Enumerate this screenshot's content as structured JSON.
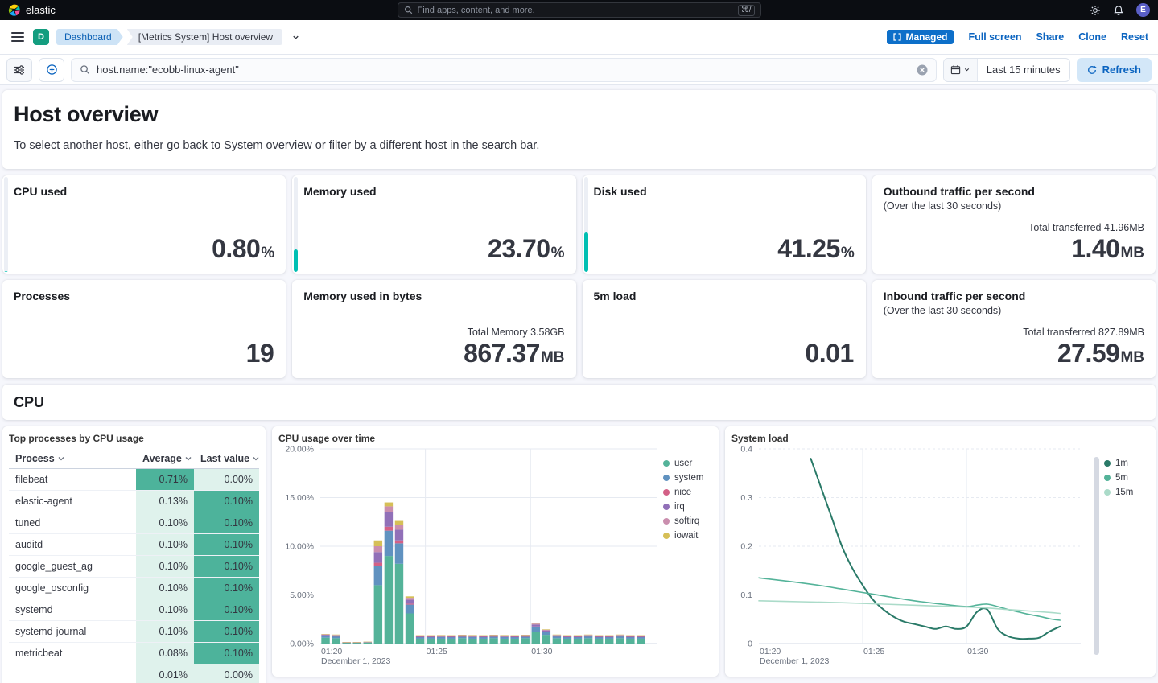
{
  "colors": {
    "accent_blue": "#0b64c0",
    "badge_blue": "#0d6fc9",
    "success_green": "#00bfb3"
  },
  "header": {
    "brand": "elastic",
    "search_placeholder": "Find apps, content, and more.",
    "search_shortcut": "⌘/",
    "avatar_initial": "E"
  },
  "toolbar": {
    "app_badge": "D",
    "breadcrumbs": [
      "Dashboard",
      "[Metrics System] Host overview"
    ],
    "managed_label": "Managed",
    "actions": {
      "full_screen": "Full screen",
      "share": "Share",
      "clone": "Clone",
      "reset": "Reset"
    }
  },
  "querybar": {
    "query": "host.name:\"ecobb-linux-agent\"",
    "time_range": "Last 15 minutes",
    "refresh_label": "Refresh"
  },
  "page": {
    "title": "Host overview",
    "subtitle_pre": "To select another host, either go back to ",
    "subtitle_link": "System overview",
    "subtitle_post": " or filter by a different host in the search bar."
  },
  "metrics": [
    {
      "title": "CPU used",
      "value": "0.80",
      "unit": "%",
      "bar_pct": 0.8,
      "bar_color": "#00bfb3"
    },
    {
      "title": "Memory used",
      "value": "23.70",
      "unit": "%",
      "bar_pct": 23.7,
      "bar_color": "#00bfb3"
    },
    {
      "title": "Disk used",
      "value": "41.25",
      "unit": "%",
      "bar_pct": 41.25,
      "bar_color": "#00bfb3"
    },
    {
      "title": "Outbound traffic per second",
      "subtitle": "(Over the last 30 seconds)",
      "secondary": "Total transferred 41.96MB",
      "value": "1.40",
      "unit": "MB"
    },
    {
      "title": "Processes",
      "value": "19",
      "unit": ""
    },
    {
      "title": "Memory used in bytes",
      "secondary": "Total Memory 3.58GB",
      "value": "867.37",
      "unit": "MB"
    },
    {
      "title": "5m load",
      "value": "0.01",
      "unit": ""
    },
    {
      "title": "Inbound traffic per second",
      "subtitle": "(Over the last 30 seconds)",
      "secondary": "Total transferred 827.89MB",
      "value": "27.59",
      "unit": "MB"
    }
  ],
  "cpu_section": {
    "title": "CPU"
  },
  "process_table": {
    "title": "Top processes by CPU usage",
    "columns": [
      "Process",
      "Average",
      "Last value"
    ],
    "heat_colors": {
      "strong": "#4db39b",
      "light": "#dff2ec"
    },
    "rows": [
      {
        "process": "filebeat",
        "average": "0.71%",
        "average_level": "strong",
        "last": "0.00%",
        "last_level": "light"
      },
      {
        "process": "elastic-agent",
        "average": "0.13%",
        "average_level": "light",
        "last": "0.10%",
        "last_level": "strong"
      },
      {
        "process": "tuned",
        "average": "0.10%",
        "average_level": "light",
        "last": "0.10%",
        "last_level": "strong"
      },
      {
        "process": "auditd",
        "average": "0.10%",
        "average_level": "light",
        "last": "0.10%",
        "last_level": "strong"
      },
      {
        "process": "google_guest_ag",
        "average": "0.10%",
        "average_level": "light",
        "last": "0.10%",
        "last_level": "strong"
      },
      {
        "process": "google_osconfig",
        "average": "0.10%",
        "average_level": "light",
        "last": "0.10%",
        "last_level": "strong"
      },
      {
        "process": "systemd",
        "average": "0.10%",
        "average_level": "light",
        "last": "0.10%",
        "last_level": "strong"
      },
      {
        "process": "systemd-journal",
        "average": "0.10%",
        "average_level": "light",
        "last": "0.10%",
        "last_level": "strong"
      },
      {
        "process": "metricbeat",
        "average": "0.08%",
        "average_level": "light",
        "last": "0.10%",
        "last_level": "strong"
      },
      {
        "process": "",
        "average": "0.01%",
        "average_level": "light",
        "last": "0.00%",
        "last_level": "light"
      }
    ]
  },
  "chart_data": [
    {
      "id": "cpu_usage_over_time",
      "type": "bar",
      "stacked": true,
      "title": "CPU usage over time",
      "xlabel": "",
      "ylabel": "",
      "legend_position": "right",
      "y_max": 20,
      "y_ticks": [
        {
          "value": 0,
          "label": "0.00%"
        },
        {
          "value": 5,
          "label": "5.00%"
        },
        {
          "value": 10,
          "label": "10.00%"
        },
        {
          "value": 15,
          "label": "15.00%"
        },
        {
          "value": 20,
          "label": "20.00%"
        }
      ],
      "x_domain_minutes": [
        0,
        16
      ],
      "x_bucket_start": 0.25,
      "x_bucket_step": 0.5,
      "x_ticks": [
        {
          "offset": 0,
          "label": "01:20",
          "sublabel": "December 1, 2023"
        },
        {
          "offset": 5,
          "label": "01:25"
        },
        {
          "offset": 10,
          "label": "01:30"
        }
      ],
      "series": [
        {
          "name": "user",
          "color": "#54b399",
          "values": [
            0.6,
            0.55,
            0.08,
            0.08,
            0.1,
            6,
            9,
            8.2,
            3.1,
            0.5,
            0.5,
            0.5,
            0.5,
            0.55,
            0.5,
            0.5,
            0.55,
            0.5,
            0.5,
            0.55,
            1.2,
            0.9,
            0.55,
            0.5,
            0.5,
            0.55,
            0.5,
            0.5,
            0.55,
            0.5,
            0.5
          ]
        },
        {
          "name": "system",
          "color": "#6092c0",
          "values": [
            0.2,
            0.2,
            0.03,
            0.03,
            0.05,
            2,
            2.6,
            2.1,
            0.9,
            0.18,
            0.18,
            0.2,
            0.18,
            0.18,
            0.2,
            0.18,
            0.18,
            0.2,
            0.18,
            0.18,
            0.5,
            0.3,
            0.2,
            0.18,
            0.18,
            0.2,
            0.18,
            0.18,
            0.2,
            0.18,
            0.18
          ]
        },
        {
          "name": "nice",
          "color": "#d36086",
          "values": [
            0.02,
            0.02,
            0.01,
            0.01,
            0.01,
            0.3,
            0.4,
            0.3,
            0.1,
            0.02,
            0.02,
            0.02,
            0.02,
            0.02,
            0.02,
            0.02,
            0.02,
            0.02,
            0.02,
            0.02,
            0.05,
            0.03,
            0.02,
            0.02,
            0.02,
            0.02,
            0.02,
            0.02,
            0.02,
            0.02,
            0.02
          ]
        },
        {
          "name": "irq",
          "color": "#9170b8",
          "values": [
            0.08,
            0.08,
            0.01,
            0.01,
            0.01,
            1.1,
            1.5,
            1.1,
            0.4,
            0.08,
            0.08,
            0.08,
            0.08,
            0.08,
            0.08,
            0.08,
            0.08,
            0.08,
            0.08,
            0.08,
            0.2,
            0.12,
            0.08,
            0.08,
            0.08,
            0.08,
            0.08,
            0.08,
            0.08,
            0.08,
            0.08
          ]
        },
        {
          "name": "softirq",
          "color": "#ca8eae",
          "values": [
            0.05,
            0.05,
            0.01,
            0.01,
            0.01,
            0.6,
            0.6,
            0.5,
            0.2,
            0.05,
            0.05,
            0.05,
            0.05,
            0.05,
            0.05,
            0.05,
            0.05,
            0.05,
            0.05,
            0.05,
            0.1,
            0.07,
            0.05,
            0.05,
            0.05,
            0.05,
            0.05,
            0.05,
            0.05,
            0.05,
            0.05
          ]
        },
        {
          "name": "iowait",
          "color": "#d6bf57",
          "values": [
            0.03,
            0.03,
            0.01,
            0.01,
            0.01,
            0.6,
            0.4,
            0.4,
            0.15,
            0.03,
            0.03,
            0.03,
            0.03,
            0.03,
            0.03,
            0.03,
            0.03,
            0.03,
            0.03,
            0.03,
            0.1,
            0.05,
            0.03,
            0.03,
            0.03,
            0.03,
            0.03,
            0.03,
            0.03,
            0.03,
            0.03
          ]
        }
      ]
    },
    {
      "id": "system_load",
      "type": "line",
      "title": "System load",
      "xlabel": "",
      "ylabel": "",
      "legend_position": "right",
      "y_max": 0.4,
      "y_ticks": [
        {
          "value": 0,
          "label": "0"
        },
        {
          "value": 0.1,
          "label": "0.1"
        },
        {
          "value": 0.2,
          "label": "0.2"
        },
        {
          "value": 0.3,
          "label": "0.3"
        },
        {
          "value": 0.4,
          "label": "0.4"
        }
      ],
      "x_domain_minutes": [
        0,
        15.5
      ],
      "x_ticks": [
        {
          "offset": 0,
          "label": "01:20",
          "sublabel": "December 1, 2023"
        },
        {
          "offset": 5,
          "label": "01:25"
        },
        {
          "offset": 10,
          "label": "01:30"
        }
      ],
      "series": [
        {
          "name": "1m",
          "color": "#2a7a68",
          "points": [
            [
              2.5,
              0.38
            ],
            [
              3,
              0.32
            ],
            [
              3.5,
              0.26
            ],
            [
              4,
              0.2
            ],
            [
              4.5,
              0.155
            ],
            [
              5,
              0.12
            ],
            [
              5.5,
              0.09
            ],
            [
              6,
              0.07
            ],
            [
              6.5,
              0.055
            ],
            [
              7,
              0.045
            ],
            [
              7.5,
              0.04
            ],
            [
              8,
              0.035
            ],
            [
              8.5,
              0.03
            ],
            [
              9,
              0.035
            ],
            [
              9.5,
              0.03
            ],
            [
              10,
              0.035
            ],
            [
              10.5,
              0.065
            ],
            [
              11,
              0.07
            ],
            [
              11.5,
              0.03
            ],
            [
              12,
              0.015
            ],
            [
              12.5,
              0.01
            ],
            [
              13,
              0.01
            ],
            [
              13.5,
              0.012
            ],
            [
              14,
              0.025
            ],
            [
              14.5,
              0.035
            ]
          ]
        },
        {
          "name": "5m",
          "color": "#54b399",
          "points": [
            [
              0,
              0.135
            ],
            [
              1,
              0.13
            ],
            [
              2,
              0.125
            ],
            [
              3,
              0.119
            ],
            [
              4,
              0.112
            ],
            [
              5,
              0.105
            ],
            [
              6,
              0.098
            ],
            [
              7,
              0.091
            ],
            [
              8,
              0.085
            ],
            [
              9,
              0.08
            ],
            [
              10,
              0.076
            ],
            [
              10.5,
              0.079
            ],
            [
              11,
              0.081
            ],
            [
              11.5,
              0.076
            ],
            [
              12,
              0.07
            ],
            [
              12.5,
              0.065
            ],
            [
              13,
              0.06
            ],
            [
              13.5,
              0.056
            ],
            [
              14,
              0.051
            ],
            [
              14.5,
              0.048
            ]
          ]
        },
        {
          "name": "15m",
          "color": "#abdbc9",
          "points": [
            [
              0,
              0.088
            ],
            [
              2,
              0.086
            ],
            [
              4,
              0.084
            ],
            [
              6,
              0.081
            ],
            [
              8,
              0.078
            ],
            [
              10,
              0.075
            ],
            [
              11,
              0.073
            ],
            [
              12,
              0.07
            ],
            [
              13,
              0.067
            ],
            [
              14,
              0.064
            ],
            [
              14.5,
              0.062
            ]
          ]
        }
      ]
    }
  ]
}
